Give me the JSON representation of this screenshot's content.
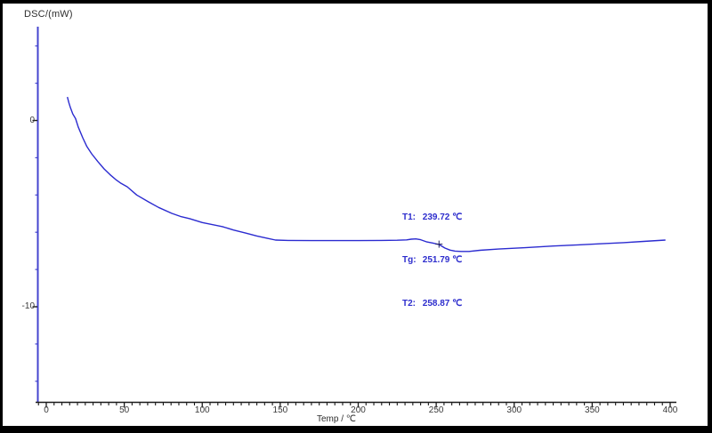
{
  "figure": {
    "border_color": "#000000",
    "background": "#ffffff"
  },
  "chart_data": {
    "type": "line",
    "title": "",
    "xlabel": "Temp / ℃",
    "ylabel": "DSC/(mW)",
    "xlim": [
      -6.8,
      404
    ],
    "ylim": [
      -15.1,
      5.0
    ],
    "grid": false,
    "legend": "none",
    "x_major_ticks": [
      0,
      50,
      100,
      150,
      200,
      250,
      300,
      350,
      400
    ],
    "x_minor_tick_step": 5,
    "y_major_ticks": [
      0,
      -10
    ],
    "y_minor_tick_step": 2,
    "axis_colors": {
      "y_axis": "#4545cf",
      "x_axis": "#1a1a1a",
      "major_tick": "#1a1a1a"
    },
    "series": [
      {
        "name": "DSC",
        "color": "#2b2bd0",
        "x": [
          13.5,
          14.5,
          15.5,
          17,
          18.8,
          20.5,
          23.4,
          26,
          29.1,
          33,
          37.1,
          40.8,
          44.5,
          48,
          51.9,
          58,
          65.6,
          72,
          80.5,
          86,
          91.9,
          100,
          113,
          120,
          128,
          135,
          141.5,
          147,
          155,
          170,
          185,
          200,
          215,
          225,
          231,
          234,
          237,
          240,
          244,
          248,
          251.8,
          255.6,
          258.9,
          262,
          266,
          271,
          278,
          290,
          307,
          325,
          341,
          355,
          370,
          383,
          397
        ],
        "y": [
          1.26,
          0.95,
          0.68,
          0.35,
          0.1,
          -0.35,
          -0.93,
          -1.4,
          -1.79,
          -2.2,
          -2.6,
          -2.9,
          -3.17,
          -3.38,
          -3.56,
          -4.0,
          -4.37,
          -4.67,
          -4.99,
          -5.15,
          -5.27,
          -5.48,
          -5.7,
          -5.88,
          -6.05,
          -6.2,
          -6.32,
          -6.42,
          -6.44,
          -6.45,
          -6.45,
          -6.45,
          -6.44,
          -6.43,
          -6.41,
          -6.37,
          -6.36,
          -6.4,
          -6.52,
          -6.58,
          -6.66,
          -6.85,
          -6.96,
          -7.01,
          -7.03,
          -7.03,
          -6.97,
          -6.9,
          -6.83,
          -6.74,
          -6.68,
          -6.62,
          -6.56,
          -6.49,
          -6.42
        ]
      }
    ],
    "markers": [
      {
        "shape": "plus",
        "x": 251.79,
        "y": -6.64,
        "color": "#23235e"
      }
    ],
    "annotations": [
      {
        "label": "T1:",
        "value": "239.72 ℃"
      },
      {
        "label": "Tg:",
        "value": "251.79 ℃"
      },
      {
        "label": "T2:",
        "value": "258.87 ℃"
      }
    ]
  }
}
